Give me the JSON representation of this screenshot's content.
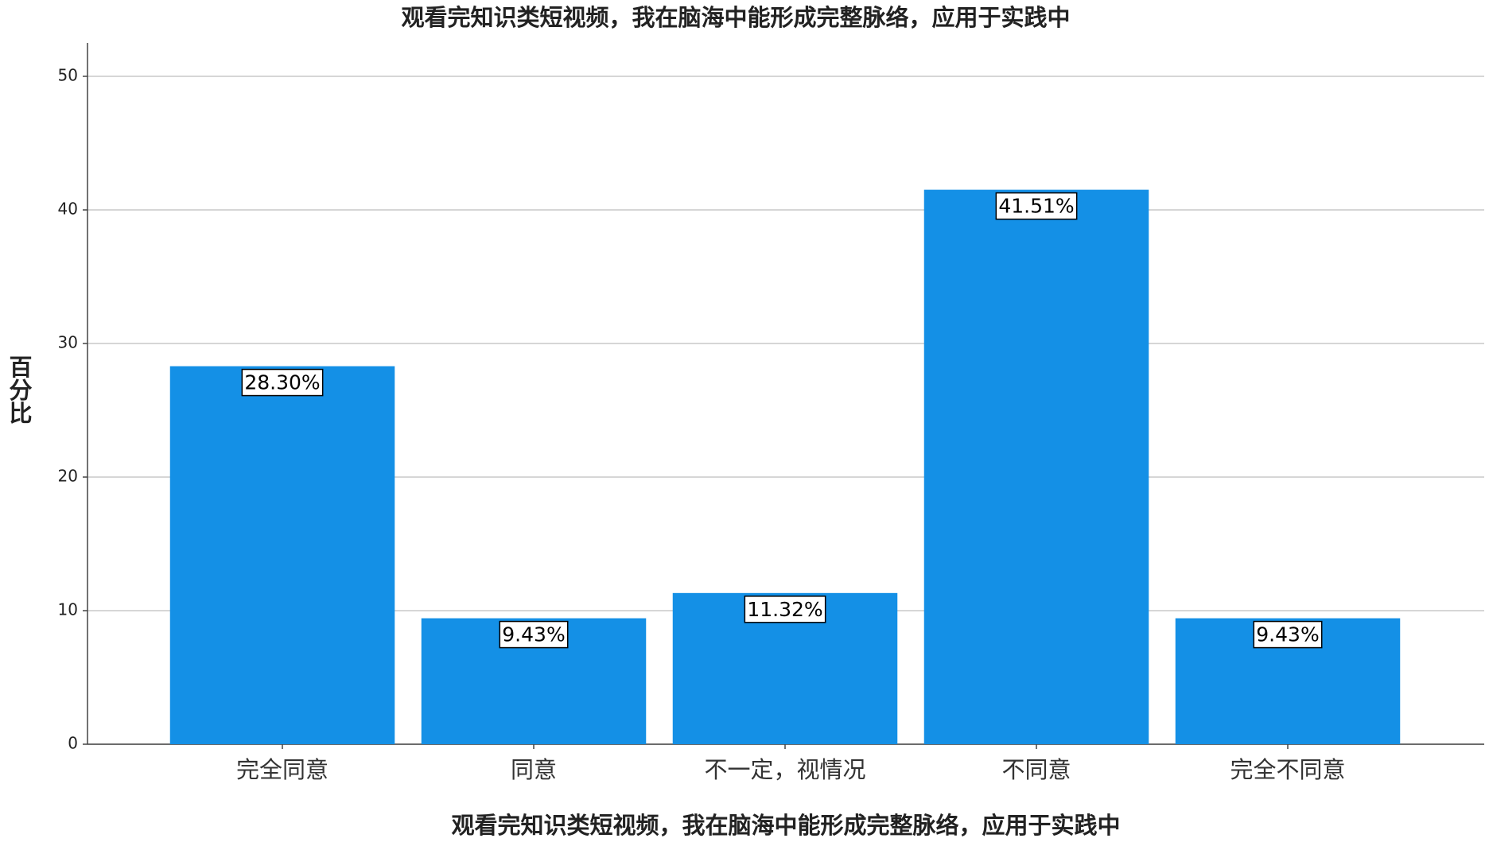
{
  "chart_data": {
    "type": "bar",
    "title": "观看完知识类短视频，我在脑海中能形成完整脉络，应用于实践中",
    "x_label": "观看完知识类短视频，我在脑海中能形成完整脉络，应用于实践中",
    "y_label": "百分比",
    "categories": [
      "完全同意",
      "同意",
      "不一定，视情况",
      "不同意",
      "完全不同意"
    ],
    "values": [
      28.3,
      9.43,
      11.32,
      41.51,
      9.43
    ],
    "value_labels": [
      "28.30%",
      "9.43%",
      "11.32%",
      "41.51%",
      "9.43%"
    ],
    "color": "#1490e6",
    "ylim": [
      0,
      52.5
    ],
    "yticks": [
      0,
      10,
      20,
      30,
      40,
      50
    ],
    "grid": true
  }
}
